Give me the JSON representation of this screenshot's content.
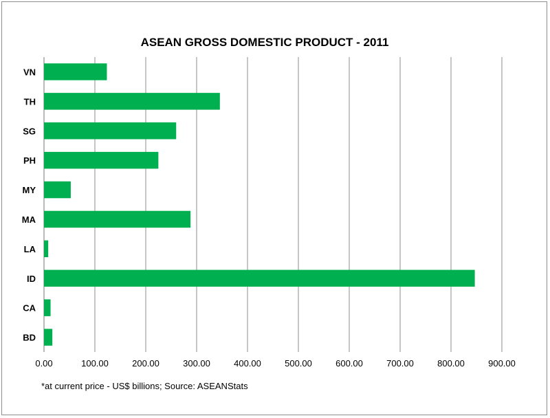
{
  "chart_data": {
    "type": "bar",
    "orientation": "horizontal",
    "title": "ASEAN GROSS DOMESTIC PRODUCT - 2011",
    "categories": [
      "VN",
      "TH",
      "SG",
      "PH",
      "MY",
      "MA",
      "LA",
      "ID",
      "CA",
      "BD"
    ],
    "values": [
      123.6,
      345.7,
      259.8,
      224.8,
      52.6,
      288.0,
      8.3,
      846.8,
      12.9,
      16.4
    ],
    "xlim": [
      0,
      900
    ],
    "x_ticks": [
      "0.00",
      "100.00",
      "200.00",
      "300.00",
      "400.00",
      "500.00",
      "600.00",
      "700.00",
      "800.00",
      "900.00"
    ],
    "xlabel": "",
    "ylabel": "",
    "grid": "vertical",
    "legend": "none",
    "bar_color": "#00b050",
    "grid_color": "#8c8c8c",
    "footnote": "*at current price - US$ billions; Source: ASEANStats"
  }
}
